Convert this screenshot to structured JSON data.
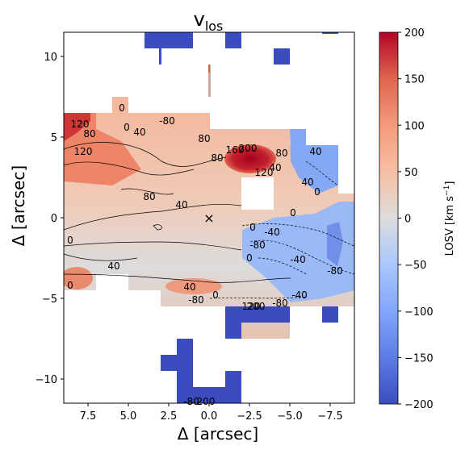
{
  "chart_data": {
    "type": "heatmap",
    "title_main": "v",
    "title_sub": "los",
    "xlabel": "Δ  [arcsec]",
    "ylabel": "Δ  [arcsec]",
    "xlim": [
      9.0,
      -9.0
    ],
    "ylim": [
      -11.5,
      11.5
    ],
    "x_ticks": [
      7.5,
      5.0,
      2.5,
      0.0,
      -2.5,
      -5.0,
      -7.5
    ],
    "x_tick_labels": [
      "7.5",
      "5.0",
      "2.5",
      "0.0",
      "−2.5",
      "−5.0",
      "−7.5"
    ],
    "y_ticks": [
      10,
      5,
      0,
      -5,
      -10
    ],
    "y_tick_labels": [
      "10",
      "5",
      "0",
      "−5",
      "−10"
    ],
    "colorbar": {
      "label": "LOSV [km s",
      "label_sup": "−1",
      "label_end": "]",
      "colormap": "coolwarm",
      "range": [
        -200,
        200
      ],
      "ticks": [
        200,
        150,
        100,
        50,
        0,
        -50,
        -100,
        -150,
        -200
      ],
      "tick_labels": [
        "200",
        "150",
        "100",
        "50",
        "0",
        "−50",
        "−100",
        "−150",
        "−200"
      ]
    },
    "center_marker": {
      "x": 0.0,
      "y": 0.0,
      "symbol": "×"
    },
    "contour_labels": [
      {
        "text": "0",
        "x": 5.4,
        "y": 6.8
      },
      {
        "text": "-80",
        "x": 2.6,
        "y": 6.0
      },
      {
        "text": "0",
        "x": 5.1,
        "y": 5.6
      },
      {
        "text": "40",
        "x": 4.3,
        "y": 5.3
      },
      {
        "text": "120",
        "x": 8.0,
        "y": 5.8
      },
      {
        "text": "80",
        "x": 7.4,
        "y": 5.2
      },
      {
        "text": "120",
        "x": 7.8,
        "y": 4.1
      },
      {
        "text": "80",
        "x": 0.3,
        "y": 4.9
      },
      {
        "text": "80",
        "x": -0.5,
        "y": 3.7
      },
      {
        "text": "160",
        "x": -1.6,
        "y": 4.2
      },
      {
        "text": "200",
        "x": -2.4,
        "y": 4.3
      },
      {
        "text": "80",
        "x": -4.5,
        "y": 4.0
      },
      {
        "text": "40",
        "x": -4.1,
        "y": 3.1
      },
      {
        "text": "120",
        "x": -3.4,
        "y": 2.8
      },
      {
        "text": "40",
        "x": -6.6,
        "y": 4.1
      },
      {
        "text": "40",
        "x": -6.1,
        "y": 2.2
      },
      {
        "text": "0",
        "x": -6.7,
        "y": 1.6
      },
      {
        "text": "80",
        "x": 3.7,
        "y": 1.3
      },
      {
        "text": "40",
        "x": 1.7,
        "y": 0.8
      },
      {
        "text": "0",
        "x": -5.2,
        "y": 0.3
      },
      {
        "text": "0",
        "x": -2.7,
        "y": -0.6
      },
      {
        "text": "-40",
        "x": -3.9,
        "y": -0.9
      },
      {
        "text": "-80",
        "x": -3.0,
        "y": -1.7
      },
      {
        "text": "0",
        "x": -2.5,
        "y": -2.5
      },
      {
        "text": "-40",
        "x": -5.5,
        "y": -2.6
      },
      {
        "text": "-80",
        "x": -7.8,
        "y": -3.3
      },
      {
        "text": "0",
        "x": 8.6,
        "y": -1.4
      },
      {
        "text": "40",
        "x": 5.9,
        "y": -3.0
      },
      {
        "text": "0",
        "x": 8.6,
        "y": -4.2
      },
      {
        "text": "40",
        "x": 1.2,
        "y": -4.3
      },
      {
        "text": "-80",
        "x": 0.8,
        "y": -5.1
      },
      {
        "text": "0",
        "x": -0.4,
        "y": -4.8
      },
      {
        "text": "-40",
        "x": -5.6,
        "y": -4.8
      },
      {
        "text": "-80",
        "x": -4.4,
        "y": -5.3
      },
      {
        "text": "120",
        "x": -2.6,
        "y": -5.5
      },
      {
        "text": "200",
        "x": -2.9,
        "y": -5.5
      },
      {
        "text": "-80",
        "x": 1.1,
        "y": -11.4
      },
      {
        "text": "200",
        "x": 0.2,
        "y": -11.4
      }
    ]
  }
}
